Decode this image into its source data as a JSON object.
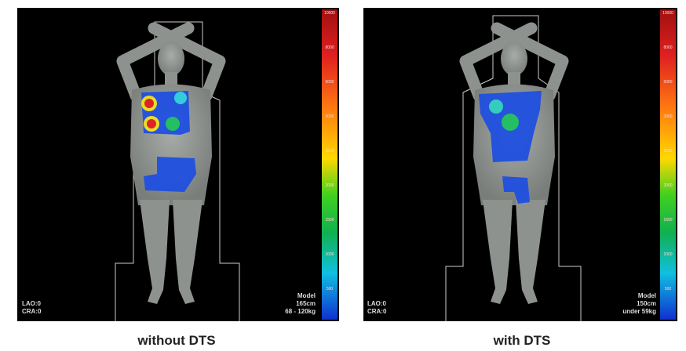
{
  "panels": [
    {
      "view": [
        "LAO:0",
        "CRA:0"
      ],
      "model": [
        "Model",
        "165cm",
        "68 - 120kg"
      ],
      "scale": [
        "10000",
        "8000",
        "5000",
        "3000",
        "2500",
        "2000",
        "1500",
        "1000",
        "500"
      ],
      "caption": "without DTS"
    },
    {
      "view": [
        "LAO:0",
        "CRA:0"
      ],
      "model": [
        "Model",
        "150cm",
        "under 59kg"
      ],
      "scale": [
        "10000",
        "8000",
        "5000",
        "3000",
        "2500",
        "2000",
        "1500",
        "1000",
        "500"
      ],
      "caption": "with DTS"
    }
  ]
}
